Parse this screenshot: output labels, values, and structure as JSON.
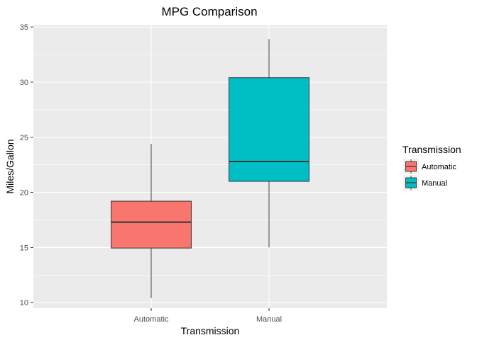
{
  "chart_data": {
    "type": "box",
    "title": "MPG Comparison",
    "xlabel": "Transmission",
    "ylabel": "Miles/Gallon",
    "categories": [
      "Automatic",
      "Manual"
    ],
    "boxes": [
      {
        "category": "Automatic",
        "min": 10.4,
        "q1": 14.95,
        "median": 17.3,
        "q3": 19.2,
        "max": 24.4,
        "fill": "#F8766D"
      },
      {
        "category": "Manual",
        "min": 15.0,
        "q1": 21.0,
        "median": 22.8,
        "q3": 30.4,
        "max": 33.9,
        "fill": "#00BFC4"
      }
    ],
    "ylim": [
      9.5,
      35.2
    ],
    "yticks": [
      10,
      15,
      20,
      25,
      30,
      35
    ],
    "grid": true,
    "legend": {
      "title": "Transmission",
      "position": "right",
      "entries": [
        {
          "label": "Automatic",
          "color": "#F8766D"
        },
        {
          "label": "Manual",
          "color": "#00BFC4"
        }
      ]
    },
    "colors": {
      "panel_bg": "#EBEBEB",
      "grid": "#FFFFFF",
      "box_stroke": "#333333"
    }
  }
}
